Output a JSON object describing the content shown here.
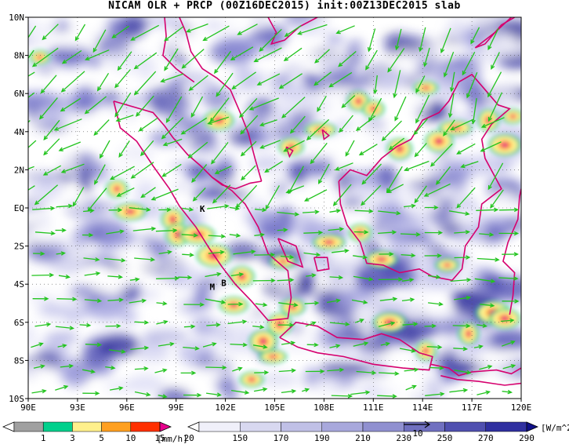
{
  "title": "NICAM OLR + PRCP (00Z16DEC2015) init:00Z13DEC2015 slab",
  "map": {
    "lon_labels": [
      "90E",
      "93E",
      "96E",
      "99E",
      "102E",
      "105E",
      "108E",
      "111E",
      "114E",
      "117E",
      "120E"
    ],
    "lat_labels": [
      "10N",
      "8N",
      "6N",
      "4N",
      "2N",
      "EQ",
      "2S",
      "4S",
      "6S",
      "8S",
      "10S"
    ],
    "stations": [
      {
        "label": "K",
        "lon": 100.6,
        "lat": -0.2
      },
      {
        "label": "M",
        "lon": 101.2,
        "lat": -4.3
      },
      {
        "label": "B",
        "lon": 101.9,
        "lat": -4.1
      }
    ],
    "colors": {
      "coast": "#d6006e",
      "wind": "#22c41e",
      "land_bg": "#ffffff"
    }
  },
  "legend_precip": {
    "ticks": [
      "1",
      "3",
      "5",
      "10",
      "15",
      "20"
    ],
    "unit": "[mm/h]",
    "colors": [
      "#ffffff",
      "#a0a0a0",
      "#00d08c",
      "#fff08c",
      "#ffa020",
      "#ff3000",
      "#e6008c"
    ]
  },
  "legend_olr": {
    "ticks": [
      "150",
      "170",
      "190",
      "210",
      "230",
      "250",
      "270",
      "290"
    ],
    "unit": "[W/m^2]",
    "colors": [
      "#ffffff",
      "#f0f0fa",
      "#d8d8f0",
      "#c0c0e6",
      "#a8a8dc",
      "#9090d0",
      "#7070c0",
      "#5050b0",
      "#3030a0",
      "#101088"
    ],
    "vector_ref": "10"
  }
}
